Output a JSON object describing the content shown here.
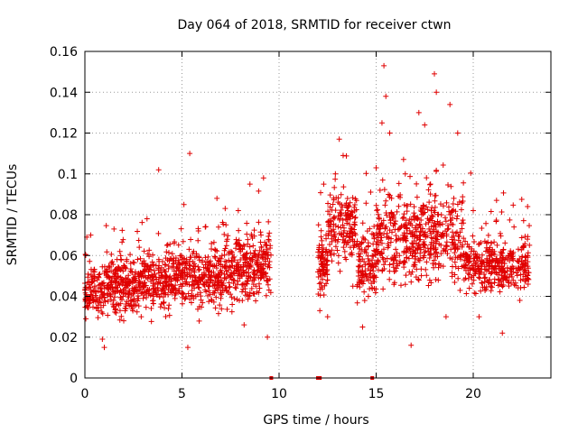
{
  "chart_data": {
    "type": "scatter",
    "title": "Day 064 of 2018, SRMTID for receiver ctwn",
    "xlabel": "GPS time / hours",
    "ylabel": "SRMTID / TECUs",
    "xlim": [
      0,
      24
    ],
    "ylim": [
      0,
      0.16
    ],
    "xticks": [
      0,
      5,
      10,
      15,
      20
    ],
    "xtick_labels": [
      "0",
      "5",
      "10",
      "15",
      "20"
    ],
    "yticks": [
      0,
      0.02,
      0.04,
      0.06,
      0.08,
      0.1,
      0.12,
      0.14,
      0.16
    ],
    "ytick_labels": [
      "0",
      "0.02",
      "0.04",
      "0.06",
      "0.08",
      "0.1",
      "0.12",
      "0.14",
      "0.16"
    ],
    "grid": true,
    "marker": "+",
    "color": "#e00000",
    "series": [
      {
        "name": "SRMTID",
        "segments": [
          {
            "x_start": 0.0,
            "x_end": 9.6,
            "typical_range": [
              0.02,
              0.07
            ],
            "rising_to": 0.09
          },
          {
            "x_start": 12.0,
            "x_end": 22.9,
            "typical_range": [
              0.02,
              0.12
            ],
            "peak": 0.153
          }
        ],
        "points": [
          [
            0.05,
            0.029
          ],
          [
            0.1,
            0.069
          ],
          [
            0.2,
            0.044
          ],
          [
            0.3,
            0.07
          ],
          [
            0.5,
            0.052
          ],
          [
            0.7,
            0.033
          ],
          [
            0.9,
            0.019
          ],
          [
            1.0,
            0.015
          ],
          [
            1.3,
            0.04
          ],
          [
            1.5,
            0.073
          ],
          [
            1.8,
            0.062
          ],
          [
            2.0,
            0.028
          ],
          [
            2.3,
            0.046
          ],
          [
            2.6,
            0.052
          ],
          [
            2.9,
            0.03
          ],
          [
            3.2,
            0.078
          ],
          [
            3.5,
            0.041
          ],
          [
            3.8,
            0.102
          ],
          [
            4.0,
            0.057
          ],
          [
            4.3,
            0.034
          ],
          [
            4.6,
            0.066
          ],
          [
            4.9,
            0.05
          ],
          [
            5.1,
            0.085
          ],
          [
            5.3,
            0.015
          ],
          [
            5.4,
            0.11
          ],
          [
            5.6,
            0.062
          ],
          [
            5.9,
            0.035
          ],
          [
            6.2,
            0.074
          ],
          [
            6.5,
            0.048
          ],
          [
            6.8,
            0.088
          ],
          [
            7.0,
            0.039
          ],
          [
            7.3,
            0.067
          ],
          [
            7.6,
            0.055
          ],
          [
            7.9,
            0.082
          ],
          [
            8.2,
            0.026
          ],
          [
            8.5,
            0.095
          ],
          [
            8.7,
            0.061
          ],
          [
            9.0,
            0.044
          ],
          [
            9.2,
            0.098
          ],
          [
            9.4,
            0.02
          ],
          [
            9.5,
            0.071
          ],
          [
            12.0,
            0.052
          ],
          [
            12.1,
            0.033
          ],
          [
            12.3,
            0.095
          ],
          [
            12.5,
            0.03
          ],
          [
            12.7,
            0.07
          ],
          [
            12.9,
            0.1
          ],
          [
            13.1,
            0.117
          ],
          [
            13.3,
            0.109
          ],
          [
            13.5,
            0.08
          ],
          [
            13.8,
            0.045
          ],
          [
            14.1,
            0.065
          ],
          [
            14.3,
            0.025
          ],
          [
            14.6,
            0.04
          ],
          [
            14.8,
            0.06
          ],
          [
            15.0,
            0.103
          ],
          [
            15.2,
            0.092
          ],
          [
            15.3,
            0.125
          ],
          [
            15.4,
            0.153
          ],
          [
            15.5,
            0.138
          ],
          [
            15.7,
            0.12
          ],
          [
            15.9,
            0.08
          ],
          [
            16.2,
            0.06
          ],
          [
            16.5,
            0.1
          ],
          [
            16.8,
            0.016
          ],
          [
            17.0,
            0.07
          ],
          [
            17.2,
            0.13
          ],
          [
            17.5,
            0.124
          ],
          [
            17.8,
            0.095
          ],
          [
            18.0,
            0.149
          ],
          [
            18.1,
            0.14
          ],
          [
            18.4,
            0.07
          ],
          [
            18.6,
            0.03
          ],
          [
            18.8,
            0.134
          ],
          [
            19.0,
            0.088
          ],
          [
            19.2,
            0.12
          ],
          [
            19.5,
            0.055
          ],
          [
            19.8,
            0.044
          ],
          [
            20.0,
            0.082
          ],
          [
            20.3,
            0.03
          ],
          [
            20.6,
            0.067
          ],
          [
            20.9,
            0.045
          ],
          [
            21.2,
            0.087
          ],
          [
            21.5,
            0.022
          ],
          [
            21.8,
            0.06
          ],
          [
            22.1,
            0.074
          ],
          [
            22.4,
            0.038
          ],
          [
            22.6,
            0.064
          ],
          [
            22.8,
            0.084
          ]
        ]
      }
    ],
    "zero_markers_x": [
      9.6,
      12.0,
      12.1,
      14.8
    ]
  }
}
